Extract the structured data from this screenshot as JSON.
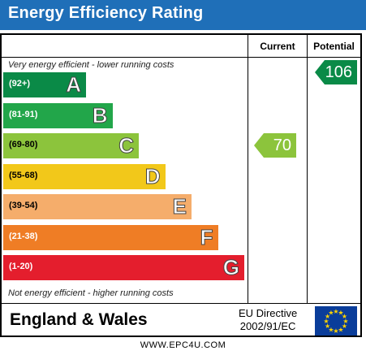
{
  "title": "Energy Efficiency Rating",
  "columns": {
    "current": "Current",
    "potential": "Potential"
  },
  "top_note": "Very energy efficient - lower running costs",
  "bottom_note": "Not energy efficient - higher running costs",
  "bands": [
    {
      "range": "(92+)",
      "letter": "A",
      "color": "#0a8a47"
    },
    {
      "range": "(81-91)",
      "letter": "B",
      "color": "#22a64a"
    },
    {
      "range": "(69-80)",
      "letter": "C",
      "color": "#8cc43c"
    },
    {
      "range": "(55-68)",
      "letter": "D",
      "color": "#f2c81a"
    },
    {
      "range": "(39-54)",
      "letter": "E",
      "color": "#f5ad6b"
    },
    {
      "range": "(21-38)",
      "letter": "F",
      "color": "#ef7d25"
    },
    {
      "range": "(1-20)",
      "letter": "G",
      "color": "#e41e2d"
    }
  ],
  "current": {
    "value": "70",
    "band": "C",
    "color": "#8cc43c"
  },
  "potential": {
    "value": "106",
    "band": "A",
    "color": "#0a8a47"
  },
  "footer": {
    "region": "England & Wales",
    "directive_line1": "EU Directive",
    "directive_line2": "2002/91/EC",
    "flag_color": "#0a3d9a",
    "star_color": "#ffd400"
  },
  "website": "WWW.EPC4U.COM"
}
